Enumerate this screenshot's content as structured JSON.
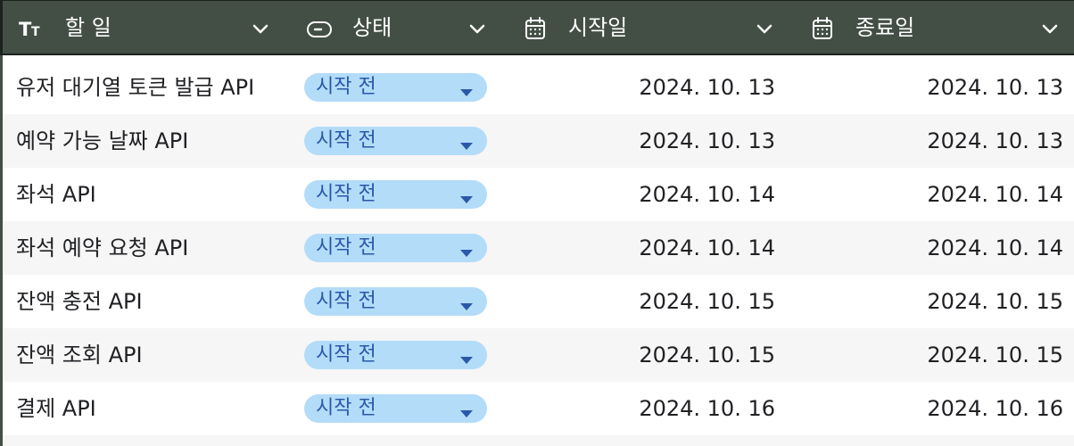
{
  "header": {
    "columns": [
      {
        "key": "task",
        "label": "할 일",
        "icon": "text-type-icon"
      },
      {
        "key": "status",
        "label": "상태",
        "icon": "status-toggle-icon"
      },
      {
        "key": "start",
        "label": "시작일",
        "icon": "calendar-icon"
      },
      {
        "key": "end",
        "label": "종료일",
        "icon": "calendar-icon"
      }
    ]
  },
  "rows": [
    {
      "task": "유저 대기열 토큰 발급 API",
      "status": "시작 전",
      "start": "2024. 10. 13",
      "end": "2024. 10. 13"
    },
    {
      "task": "예약 가능 날짜 API",
      "status": "시작 전",
      "start": "2024. 10. 13",
      "end": "2024. 10. 13"
    },
    {
      "task": "좌석 API",
      "status": "시작 전",
      "start": "2024. 10. 14",
      "end": "2024. 10. 14"
    },
    {
      "task": "좌석 예약 요청 API",
      "status": "시작 전",
      "start": "2024. 10. 14",
      "end": "2024. 10. 14"
    },
    {
      "task": "잔액 충전 API",
      "status": "시작 전",
      "start": "2024. 10. 15",
      "end": "2024. 10. 15"
    },
    {
      "task": "잔액 조회 API",
      "status": "시작 전",
      "start": "2024. 10. 15",
      "end": "2024. 10. 15"
    },
    {
      "task": "결제 API",
      "status": "시작 전",
      "start": "2024. 10. 16",
      "end": "2024. 10. 16"
    }
  ],
  "colors": {
    "header_bg": "#434f45",
    "status_pill_bg": "#b3dcf9",
    "status_pill_text": "#2b58a8",
    "row_alt_bg": "#f6f6f6"
  }
}
